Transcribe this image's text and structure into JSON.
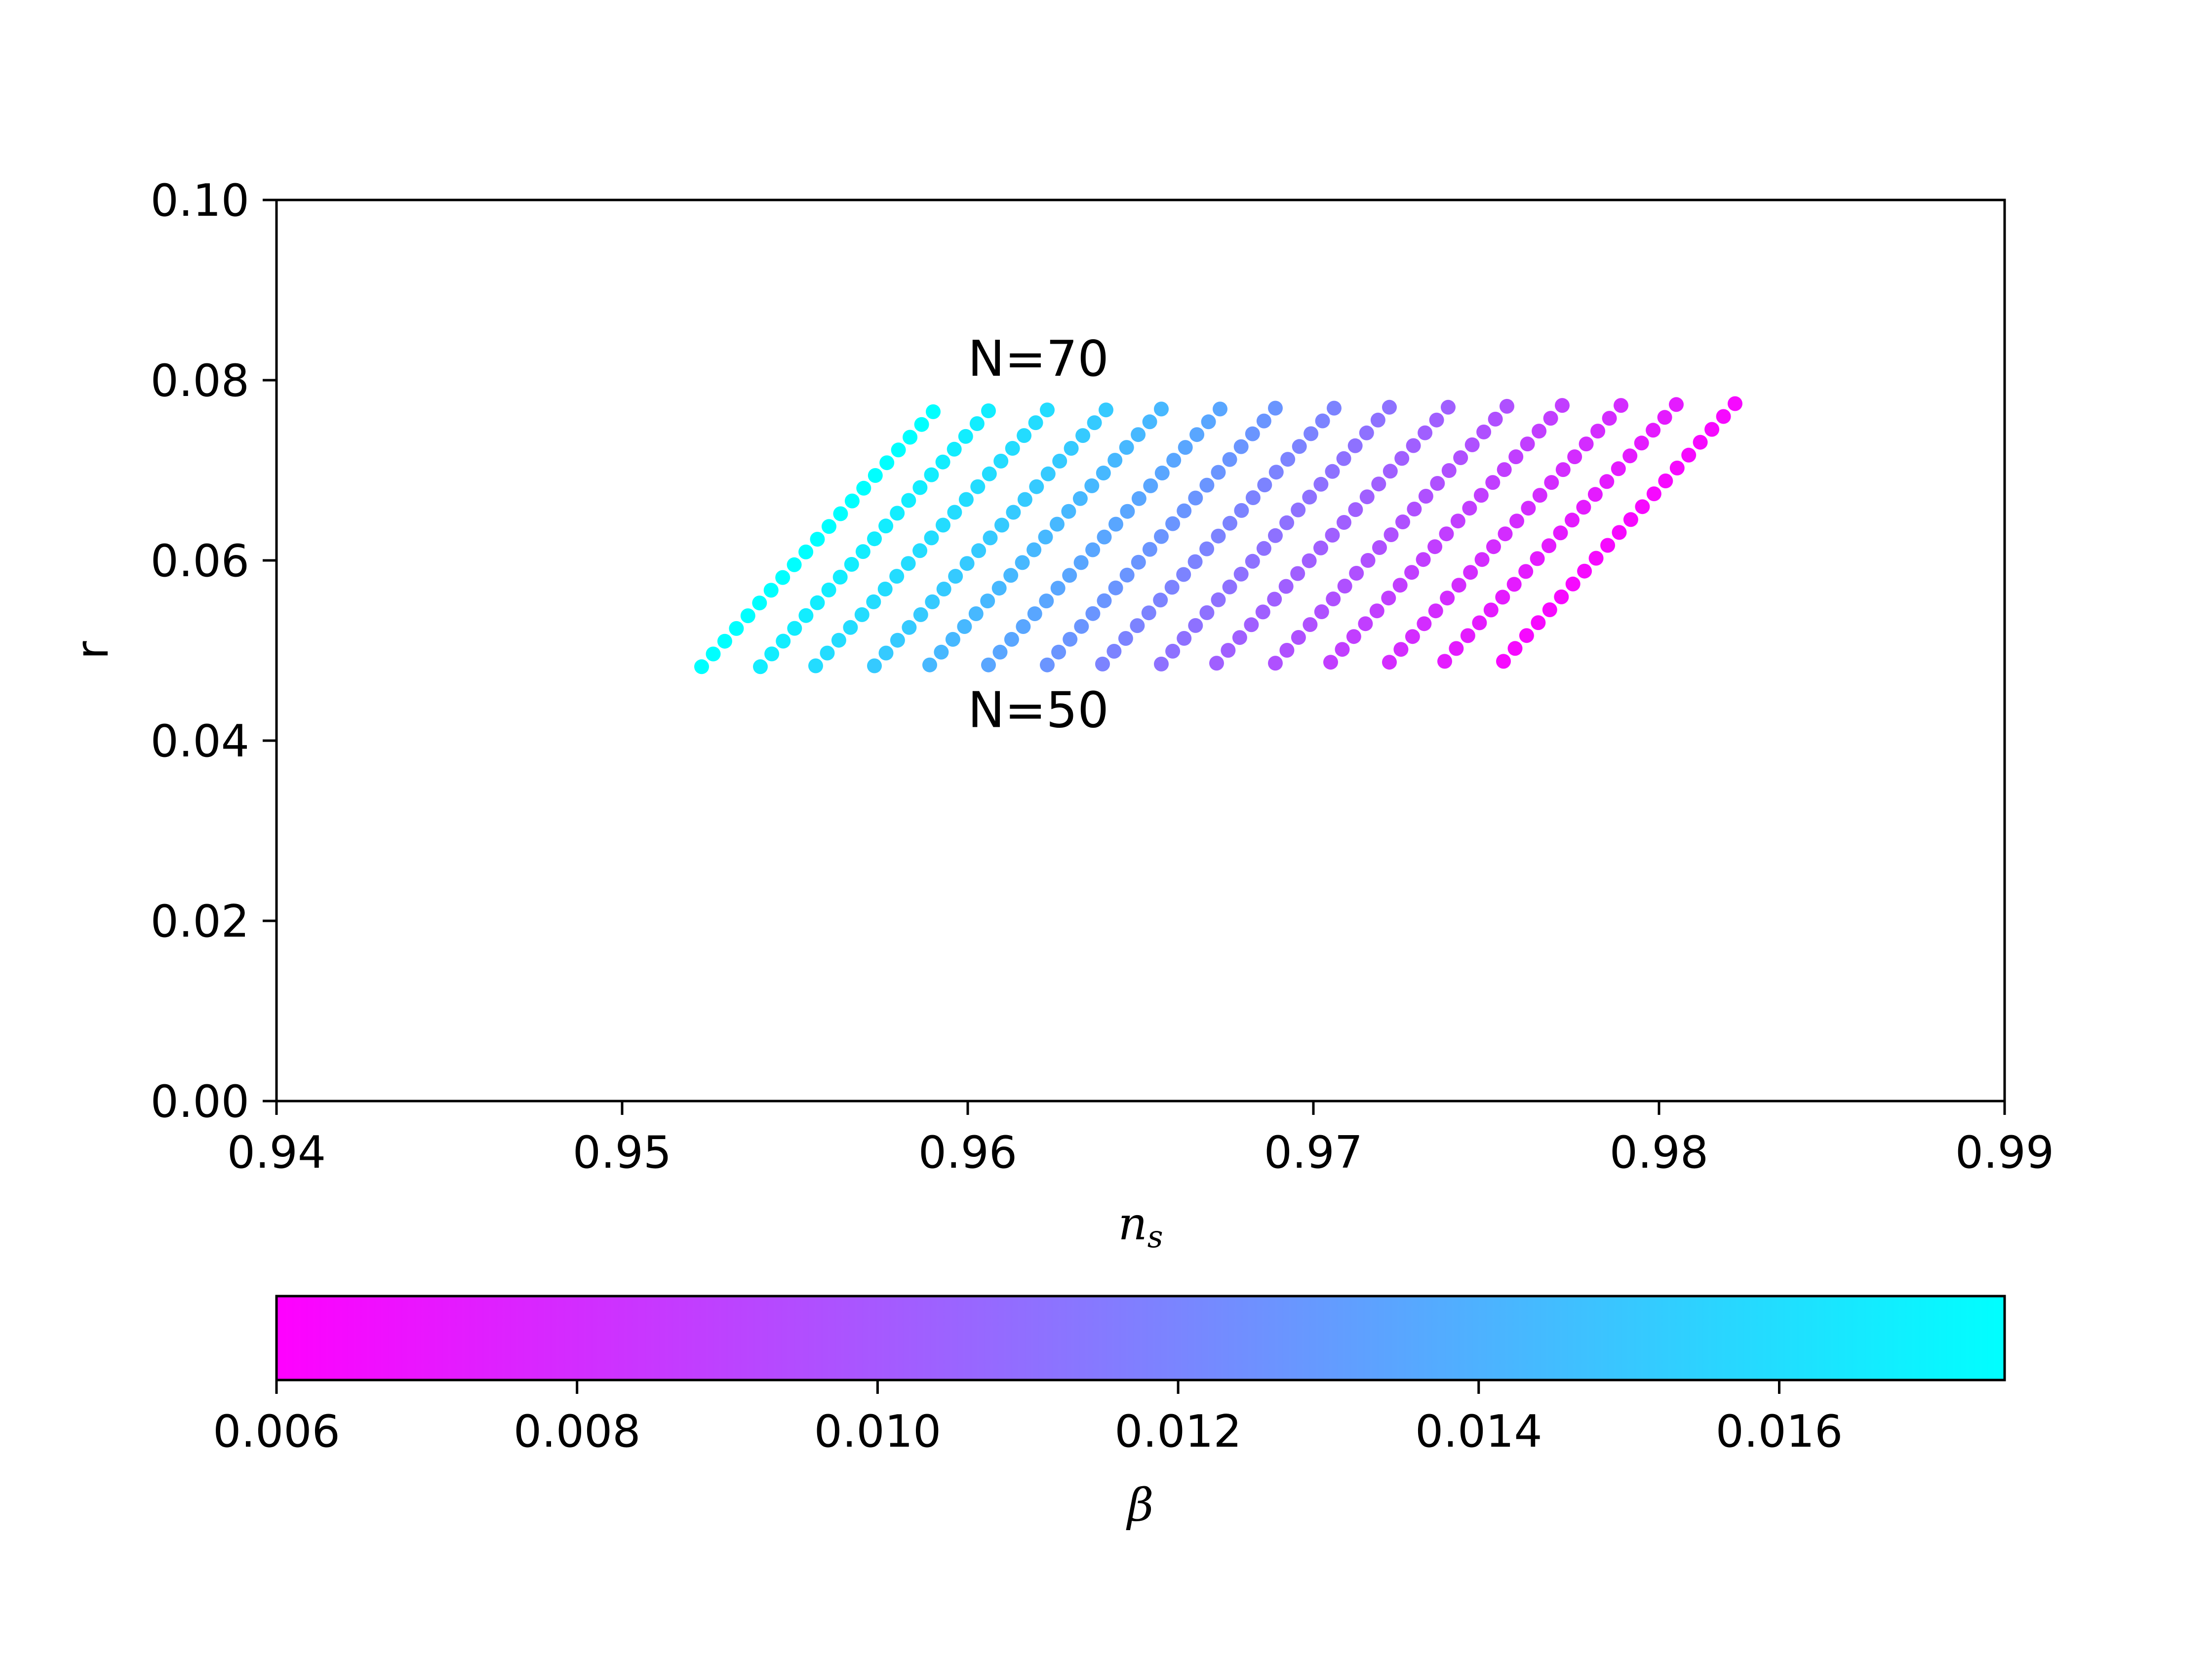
{
  "chart_data": {
    "type": "scatter",
    "title": "",
    "xlabel": "n",
    "xlabel_subscript": "s",
    "ylabel": "r",
    "xlim": [
      0.94,
      0.99
    ],
    "ylim": [
      0.0,
      0.1
    ],
    "x_ticks": [
      "0.94",
      "0.95",
      "0.96",
      "0.97",
      "0.98",
      "0.99"
    ],
    "y_ticks": [
      "0.00",
      "0.02",
      "0.04",
      "0.06",
      "0.08",
      "0.10"
    ],
    "x_tick_values": [
      0.94,
      0.95,
      0.96,
      0.97,
      0.98,
      0.99
    ],
    "y_tick_values": [
      0.0,
      0.02,
      0.04,
      0.06,
      0.08,
      0.1
    ],
    "grid": false,
    "legend": "none",
    "N_range": [
      50,
      70
    ],
    "N_step": 1,
    "annotations": [
      {
        "text": "N=70",
        "x": 0.96,
        "y": 0.0805
      },
      {
        "text": "N=50",
        "x": 0.96,
        "y": 0.0415
      }
    ],
    "series": [
      {
        "beta": 0.0175,
        "start": [
          0.9523,
          0.0482
        ],
        "end": [
          0.959,
          0.0765
        ]
      },
      {
        "beta": 0.0167,
        "start": [
          0.954,
          0.0482
        ],
        "end": [
          0.9606,
          0.0766
        ]
      },
      {
        "beta": 0.0159,
        "start": [
          0.9556,
          0.0483
        ],
        "end": [
          0.9623,
          0.0767
        ]
      },
      {
        "beta": 0.0151,
        "start": [
          0.9573,
          0.0483
        ],
        "end": [
          0.964,
          0.0767
        ]
      },
      {
        "beta": 0.0143,
        "start": [
          0.9589,
          0.0484
        ],
        "end": [
          0.9656,
          0.0768
        ]
      },
      {
        "beta": 0.0135,
        "start": [
          0.9606,
          0.0484
        ],
        "end": [
          0.9673,
          0.0768
        ]
      },
      {
        "beta": 0.0127,
        "start": [
          0.9623,
          0.0484
        ],
        "end": [
          0.9689,
          0.0769
        ]
      },
      {
        "beta": 0.0119,
        "start": [
          0.9639,
          0.0485
        ],
        "end": [
          0.9706,
          0.0769
        ]
      },
      {
        "beta": 0.0111,
        "start": [
          0.9656,
          0.0485
        ],
        "end": [
          0.9722,
          0.077
        ]
      },
      {
        "beta": 0.0103,
        "start": [
          0.9672,
          0.0486
        ],
        "end": [
          0.9739,
          0.077
        ]
      },
      {
        "beta": 0.0096,
        "start": [
          0.9689,
          0.0486
        ],
        "end": [
          0.9756,
          0.0771
        ]
      },
      {
        "beta": 0.0088,
        "start": [
          0.9705,
          0.0487
        ],
        "end": [
          0.9772,
          0.0772
        ]
      },
      {
        "beta": 0.008,
        "start": [
          0.9722,
          0.0487
        ],
        "end": [
          0.9789,
          0.0772
        ]
      },
      {
        "beta": 0.0072,
        "start": [
          0.9738,
          0.0488
        ],
        "end": [
          0.9805,
          0.0773
        ]
      },
      {
        "beta": 0.0064,
        "start": [
          0.9755,
          0.0488
        ],
        "end": [
          0.9822,
          0.0774
        ]
      }
    ],
    "colorbar": {
      "label": "β",
      "range": [
        0.006,
        0.0175
      ],
      "ticks": [
        "0.006",
        "0.008",
        "0.010",
        "0.012",
        "0.014",
        "0.016"
      ],
      "tick_values": [
        0.006,
        0.008,
        0.01,
        0.012,
        0.014,
        0.016
      ],
      "colormap": "cool_reversed",
      "color_low": "#ff00ff",
      "color_high": "#00ffff",
      "orientation": "horizontal",
      "placement": "below"
    }
  }
}
